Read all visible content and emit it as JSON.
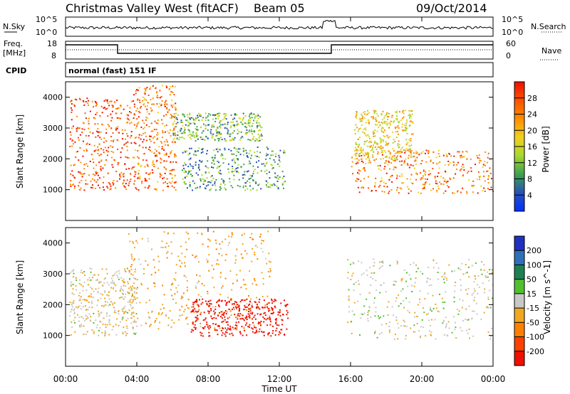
{
  "header": {
    "title": "Christmas Valley West (fitACF)",
    "beam": "Beam 05",
    "date": "09/Oct/2014"
  },
  "panels": {
    "nsky": {
      "left_label": "N.Sky",
      "left_ticks": [
        "10^5",
        "10^0"
      ],
      "right_label": "N.Search",
      "right_ticks": [
        "10^5",
        "10^0"
      ]
    },
    "freq": {
      "left_label_1": "Freq.",
      "left_label_2": "[MHz]",
      "left_ticks": [
        "18",
        "8"
      ],
      "right_label": "Nave",
      "right_ticks": [
        "60",
        "0"
      ]
    },
    "cpid": {
      "label": "CPID",
      "text": "normal (fast) 151 IF"
    }
  },
  "chart_data": [
    {
      "type": "heatmap",
      "title": "",
      "xlabel": "Time UT",
      "ylabel": "Slant Range [km]",
      "xlim": [
        "00:00",
        "24:00"
      ],
      "ylim": [
        0,
        4500
      ],
      "x_ticks": [
        "00:00",
        "04:00",
        "08:00",
        "12:00",
        "16:00",
        "20:00",
        "00:00"
      ],
      "y_ticks": [
        1000,
        2000,
        3000,
        4000
      ],
      "colorbar": {
        "label": "Power [dB]",
        "ticks": [
          "4",
          "8",
          "12",
          "16",
          "20",
          "24",
          "28"
        ],
        "colors": [
          "#0030ff",
          "#2850b8",
          "#3aa050",
          "#a8d830",
          "#f0d020",
          "#ff9000",
          "#ff5000",
          "#ee1000"
        ]
      },
      "regions": [
        {
          "name": "early-night-band",
          "t_start": 0.2,
          "t_end": 3.8,
          "r_low": 1000,
          "r_high": 4000,
          "power_db": 26
        },
        {
          "name": "morning-rising-band",
          "t_start": 3.8,
          "t_end": 6.2,
          "r_low": 1000,
          "r_high": 4400,
          "power_db": 24
        },
        {
          "name": "daytime-arc",
          "t_start": 6.0,
          "t_end": 11.0,
          "r_low": 2600,
          "r_high": 3500,
          "power_db": 12
        },
        {
          "name": "daytime-patches",
          "t_start": 6.5,
          "t_end": 12.3,
          "r_low": 1000,
          "r_high": 2400,
          "power_db": 10
        },
        {
          "name": "evening-main-band",
          "t_start": 16.0,
          "t_end": 24.0,
          "r_low": 900,
          "r_high": 2300,
          "power_db": 24
        },
        {
          "name": "evening-streaks",
          "t_start": 16.2,
          "t_end": 19.5,
          "r_low": 2000,
          "r_high": 3600,
          "power_db": 18
        }
      ]
    },
    {
      "type": "heatmap",
      "title": "",
      "xlabel": "Time UT",
      "ylabel": "Slant Range [km]",
      "xlim": [
        "00:00",
        "24:00"
      ],
      "ylim": [
        0,
        4500
      ],
      "x_ticks": [
        "00:00",
        "04:00",
        "08:00",
        "12:00",
        "16:00",
        "20:00",
        "00:00"
      ],
      "y_ticks": [
        1000,
        2000,
        3000,
        4000
      ],
      "colorbar": {
        "label": "Velocity [m s^-1]",
        "ticks": [
          "200",
          "100",
          "50",
          "15",
          "-15",
          "-50",
          "-100",
          "-200"
        ],
        "colors": [
          "#2030c0",
          "#2f6fb8",
          "#1e8050",
          "#50c030",
          "#c8c8c8",
          "#f0a820",
          "#ff8000",
          "#ff4000",
          "#ee1000"
        ]
      },
      "regions": [
        {
          "name": "night-gray-band",
          "t_start": 0.2,
          "t_end": 4.0,
          "r_low": 1000,
          "r_high": 3200,
          "velocity": -10
        },
        {
          "name": "morning-orange-band",
          "t_start": 3.5,
          "t_end": 11.5,
          "r_low": 1200,
          "r_high": 4400,
          "velocity": -40
        },
        {
          "name": "daytime-red-patches",
          "t_start": 7.0,
          "t_end": 12.5,
          "r_low": 1000,
          "r_high": 2200,
          "velocity": -250
        },
        {
          "name": "evening-gray-band",
          "t_start": 15.8,
          "t_end": 24.0,
          "r_low": 900,
          "r_high": 3500,
          "velocity": 0
        }
      ]
    }
  ]
}
